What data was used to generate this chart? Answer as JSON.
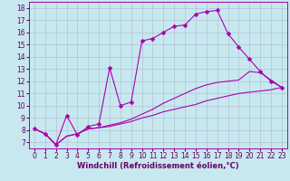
{
  "xlabel": "Windchill (Refroidissement éolien,°C)",
  "xlim": [
    -0.5,
    23.5
  ],
  "ylim": [
    6.5,
    18.5
  ],
  "yticks": [
    7,
    8,
    9,
    10,
    11,
    12,
    13,
    14,
    15,
    16,
    17,
    18
  ],
  "xticks": [
    0,
    1,
    2,
    3,
    4,
    5,
    6,
    7,
    8,
    9,
    10,
    11,
    12,
    13,
    14,
    15,
    16,
    17,
    18,
    19,
    20,
    21,
    22,
    23
  ],
  "bg_color": "#c8e8f0",
  "line_color": "#aa00aa",
  "grid_color": "#aabbcc",
  "series1": {
    "x": [
      0,
      1,
      2,
      3,
      4,
      5,
      6,
      7,
      8,
      9,
      10,
      11,
      12,
      13,
      14,
      15,
      16,
      17,
      18,
      19,
      20,
      21,
      22,
      23
    ],
    "y": [
      8.1,
      7.7,
      6.8,
      7.5,
      7.7,
      8.1,
      8.2,
      8.3,
      8.5,
      8.7,
      9.0,
      9.2,
      9.5,
      9.7,
      9.9,
      10.1,
      10.4,
      10.6,
      10.8,
      11.0,
      11.1,
      11.2,
      11.3,
      11.5
    ]
  },
  "series2": {
    "x": [
      0,
      1,
      2,
      3,
      4,
      5,
      6,
      7,
      8,
      9,
      10,
      11,
      12,
      13,
      14,
      15,
      16,
      17,
      18,
      19,
      20,
      21,
      22,
      23
    ],
    "y": [
      8.1,
      7.7,
      6.8,
      7.5,
      7.7,
      8.1,
      8.2,
      8.4,
      8.6,
      8.9,
      9.3,
      9.7,
      10.2,
      10.6,
      11.0,
      11.4,
      11.7,
      11.9,
      12.0,
      12.1,
      12.8,
      12.7,
      12.1,
      11.5
    ]
  },
  "series3": {
    "x": [
      0,
      1,
      2,
      3,
      4,
      5,
      6,
      7,
      8,
      9,
      10,
      11,
      12,
      13,
      14,
      15,
      16,
      17,
      18,
      19,
      20,
      21,
      22,
      23
    ],
    "y": [
      8.1,
      7.7,
      6.8,
      9.2,
      7.6,
      8.3,
      8.5,
      13.1,
      10.0,
      10.3,
      15.3,
      15.5,
      16.0,
      16.5,
      16.6,
      17.5,
      17.7,
      17.8,
      15.9,
      14.8,
      13.8,
      12.8,
      12.0,
      11.5
    ]
  },
  "font_color": "#660066",
  "axis_label_fontsize": 6.0,
  "tick_fontsize": 5.5,
  "linewidth": 0.8,
  "markersize": 2.5
}
